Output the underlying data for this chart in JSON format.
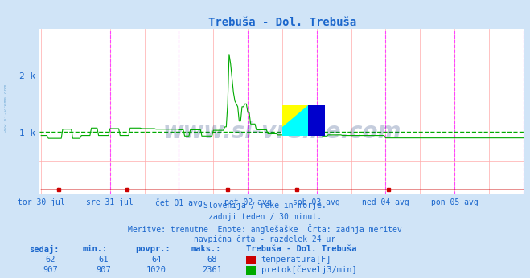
{
  "title": "Trebuša - Dol. Trebuša",
  "title_color": "#1a66cc",
  "bg_color": "#d0e4f7",
  "plot_bg_color": "#ffffff",
  "grid_color": "#ffaaaa",
  "vline_color": "#ff44ff",
  "text_color": "#1a66cc",
  "xlim": [
    0,
    336
  ],
  "ylim": [
    0,
    2800
  ],
  "yticks": [
    1000,
    2000
  ],
  "ytick_labels": [
    "1 k",
    "2 k"
  ],
  "xtick_labels": [
    "tor 30 jul",
    "sre 31 jul",
    "čet 01 avg",
    "pet 02 avg",
    "sob 03 avg",
    "ned 04 avg",
    "pon 05 avg"
  ],
  "xtick_positions": [
    0,
    48,
    96,
    144,
    192,
    240,
    288
  ],
  "vline_positions": [
    48,
    96,
    144,
    192,
    240,
    288,
    336
  ],
  "avg_line_color": "#00aa00",
  "avg_value": 1020,
  "temp_color": "#cc0000",
  "flow_color": "#00aa00",
  "temp_values_sedaj": 62,
  "temp_values_min": 61,
  "temp_values_povpr": 64,
  "temp_values_maks": 68,
  "flow_values_sedaj": 907,
  "flow_values_min": 907,
  "flow_values_povpr": 1020,
  "flow_values_maks": 2361,
  "subtitle1": "Slovenija / reke in morje.",
  "subtitle2": "zadnji teden / 30 minut.",
  "subtitle3": "Meritve: trenutne  Enote: anglešaške  Črta: zadnja meritev",
  "subtitle4": "navpična črta - razdelek 24 ur",
  "legend_title": "Trebuša - Dol. Trebuša",
  "legend_temp": "temperatura[F]",
  "legend_flow": "pretok[čevelj3/min]",
  "table_headers": [
    "sedaj:",
    "min.:",
    "povpr.:",
    "maks.:"
  ],
  "watermark": "www.si-vreme.com",
  "watermark_color": "#1a3a7a",
  "watermark_alpha": 0.25,
  "sidebar_text": "www.si-vreme.com",
  "sidebar_color": "#5599cc",
  "sidebar_alpha": 0.7
}
